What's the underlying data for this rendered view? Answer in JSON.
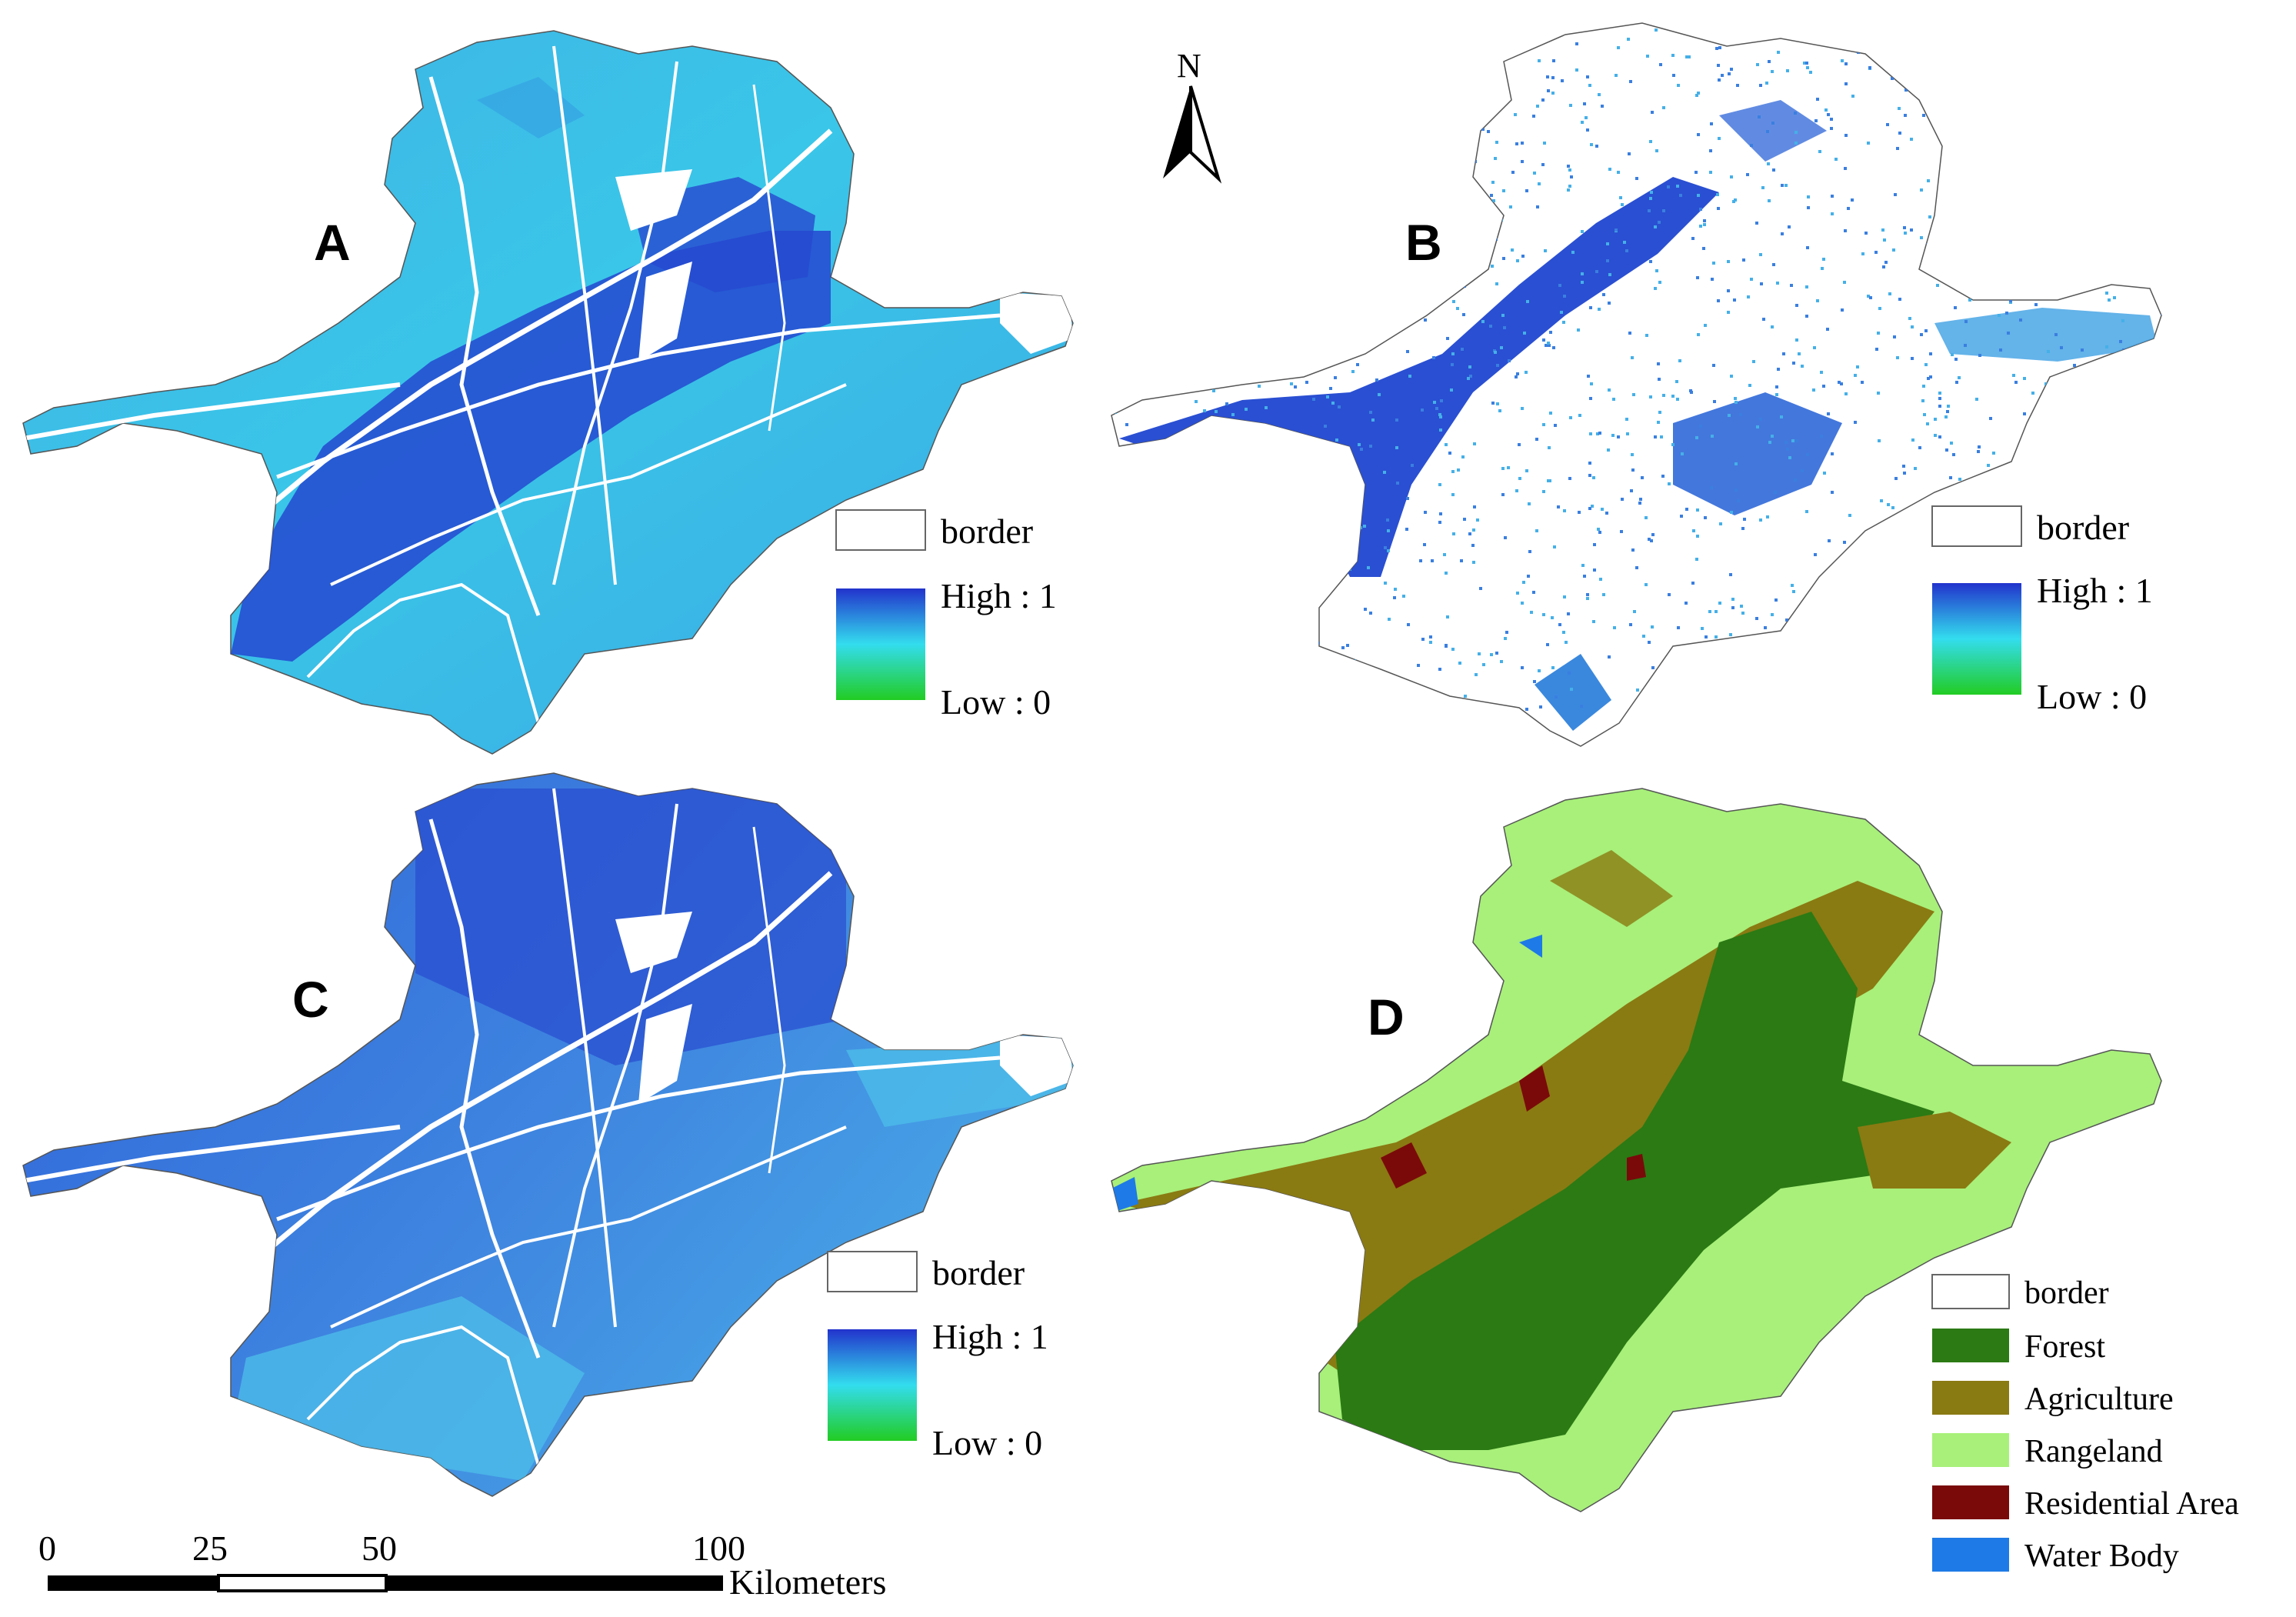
{
  "panels": [
    {
      "id": "A",
      "label": "A",
      "legend": {
        "border": "border",
        "high": "High : 1",
        "low": "Low : 0"
      }
    },
    {
      "id": "B",
      "label": "B",
      "legend": {
        "border": "border",
        "high": "High : 1",
        "low": "Low : 0"
      }
    },
    {
      "id": "C",
      "label": "C",
      "legend": {
        "border": "border",
        "high": "High : 1",
        "low": "Low : 0"
      }
    },
    {
      "id": "D",
      "label": "D",
      "legend": {
        "border": "border",
        "classes": [
          {
            "name": "Forest",
            "color": "#2b7a14"
          },
          {
            "name": "Agriculture",
            "color": "#8a7a12"
          },
          {
            "name": "Rangeland",
            "color": "#a8f07a"
          },
          {
            "name": "Residential Area",
            "color": "#7a0a0a"
          },
          {
            "name": "Water Body",
            "color": "#1e7ae6"
          }
        ]
      }
    }
  ],
  "north_arrow": {
    "label": "N",
    "icon": "north-arrow-icon"
  },
  "scale_bar": {
    "ticks": [
      "0",
      "25",
      "50",
      "100"
    ],
    "unit": "Kilometers"
  },
  "colors": {
    "high": "#2244cc",
    "mid": "#33ccee",
    "low": "#22cc33"
  }
}
